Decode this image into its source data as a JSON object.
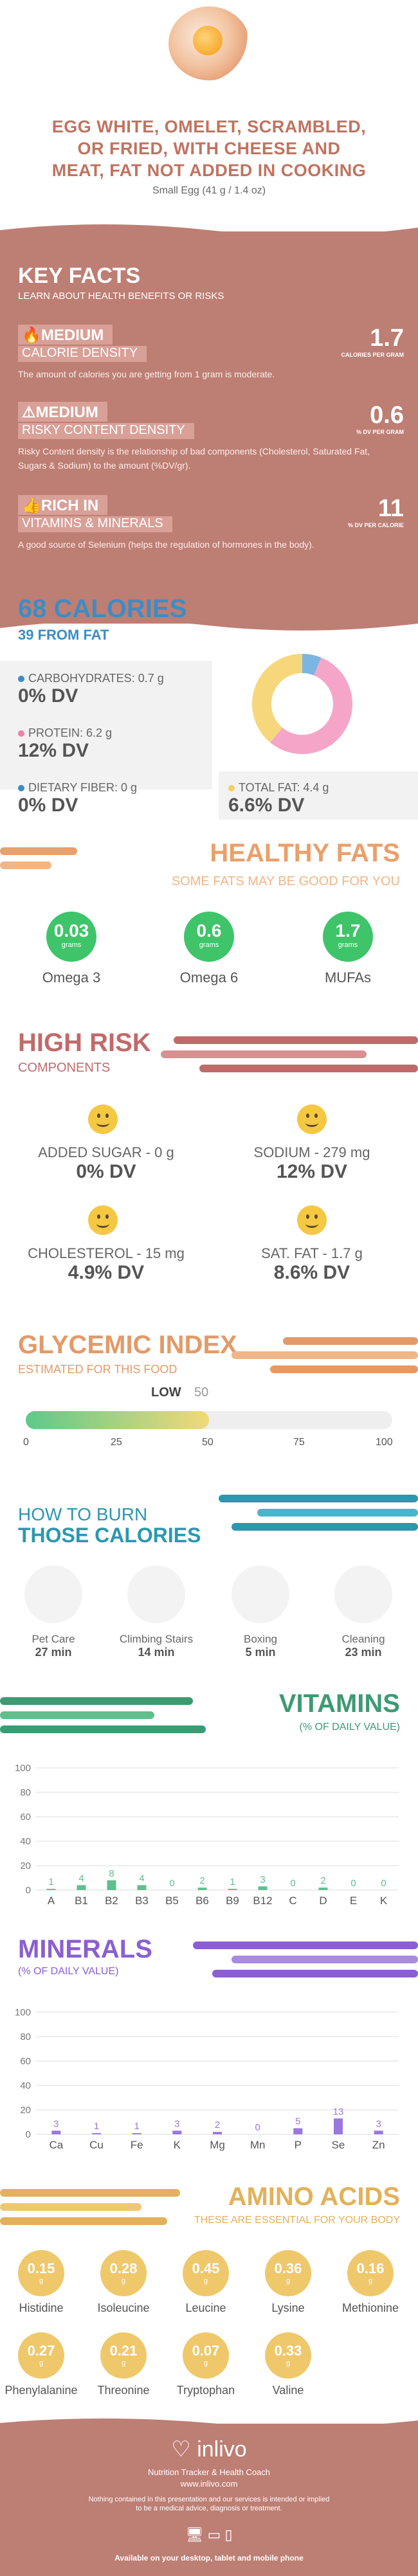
{
  "header": {
    "title_lines": [
      "EGG WHITE, OMELET, SCRAMBLED,",
      "OR FRIED, WITH CHEESE AND",
      "MEAT, FAT NOT ADDED IN COOKING"
    ],
    "serving": "Small Egg (41 g / 1.4 oz)"
  },
  "key_facts": {
    "title": "KEY FACTS",
    "subtitle": "LEARN ABOUT HEALTH BENEFITS OR RISKS",
    "items": [
      {
        "tag": "MEDIUM",
        "label": "CALORIE DENSITY",
        "value": "1.7",
        "unit": "CALORIES PER GRAM",
        "desc": "The amount of calories you are getting from 1 gram is moderate.",
        "icon": "flame-icon"
      },
      {
        "tag": "MEDIUM",
        "label": "RISKY CONTENT DENSITY",
        "value": "0.6",
        "unit": "% DV PER GRAM",
        "desc": "Risky Content density is the relationship of bad components (Cholesterol, Saturated Fat, Sugars & Sodium) to the amount (%DV/gr).",
        "icon": "warning-icon"
      },
      {
        "tag": "RICH  IN",
        "label": "VITAMINS & MINERALS",
        "value": "11",
        "unit": "% DV PER CALORIE",
        "desc": "A good source of Selenium (helps the regulation of hormones in the body).",
        "icon": "thumbs-up-icon"
      }
    ]
  },
  "calories": {
    "title": "68 CALORIES",
    "from_fat": "39 FROM FAT",
    "macros": [
      {
        "label": "CARBOHYDRATES: 0.7 g",
        "dv": "0% DV",
        "color": "#3d8cc4"
      },
      {
        "label": "PROTEIN: 6.2 g",
        "dv": "12% DV",
        "color": "#f27ea9"
      },
      {
        "label": "DIETARY FIBER: 0 g",
        "dv": "0% DV",
        "color": "#3d8cc4"
      },
      {
        "label": "TOTAL FAT: 4.4 g",
        "dv": "6.6% DV",
        "color": "#f5cf63"
      }
    ]
  },
  "chart_data": [
    {
      "type": "pie",
      "categories": [
        "Carbohydrates",
        "Protein",
        "Total Fat"
      ],
      "values": [
        0.7,
        6.2,
        4.4
      ],
      "colors": [
        "#7bb6e2",
        "#f5a6c8",
        "#f7d77b"
      ],
      "donut": true
    },
    {
      "type": "bar",
      "title": "VITAMINS",
      "subtitle": "(% OF DAILY VALUE)",
      "categories": [
        "A",
        "B1",
        "B2",
        "B3",
        "B5",
        "B6",
        "B9",
        "B12",
        "C",
        "D",
        "E",
        "K"
      ],
      "values": [
        1,
        4,
        8,
        4,
        0,
        2,
        1,
        3,
        0,
        2,
        0,
        0
      ],
      "ylim": [
        0,
        100
      ],
      "yticks": [
        "0",
        "20",
        "40",
        "60",
        "80",
        "100"
      ],
      "color": "#5fbf8d"
    },
    {
      "type": "bar",
      "title": "MINERALS",
      "subtitle": "(% OF DAILY VALUE)",
      "categories": [
        "Ca",
        "Cu",
        "Fe",
        "K",
        "Mg",
        "Mn",
        "P",
        "Se",
        "Zn"
      ],
      "values": [
        3,
        1,
        1,
        3,
        2,
        0,
        5,
        13,
        3
      ],
      "ylim": [
        0,
        100
      ],
      "yticks": [
        "0",
        "20",
        "40",
        "60",
        "80",
        "100"
      ],
      "color": "#9a78db"
    }
  ],
  "healthy_fats": {
    "title": "HEALTHY FATS",
    "subtitle": "SOME FATS MAY BE GOOD FOR YOU",
    "unit": "grams",
    "items": [
      {
        "value": "0.03",
        "label": "Omega 3"
      },
      {
        "value": "0.6",
        "label": "Omega 6"
      },
      {
        "value": "1.7",
        "label": "MUFAs"
      }
    ]
  },
  "high_risk": {
    "title": "HIGH RISK",
    "subtitle": "COMPONENTS",
    "items": [
      {
        "label": "ADDED SUGAR - 0 g",
        "dv": "0% DV"
      },
      {
        "label": "SODIUM - 279 mg",
        "dv": "12% DV"
      },
      {
        "label": "CHOLESTEROL - 15 mg",
        "dv": "4.9% DV"
      },
      {
        "label": "SAT. FAT - 1.7 g",
        "dv": "8.6% DV"
      }
    ]
  },
  "glycemic": {
    "title": "GLYCEMIC INDEX",
    "subtitle": "ESTIMATED FOR THIS FOOD",
    "level": "LOW",
    "value": "50",
    "fill_fraction": 0.5,
    "ticks": [
      "0",
      "25",
      "50",
      "75",
      "100"
    ]
  },
  "burn": {
    "title1": "HOW TO BURN",
    "title2": "THOSE CALORIES",
    "items": [
      {
        "name": "Pet Care",
        "minutes": "27 min"
      },
      {
        "name": "Climbing Stairs",
        "minutes": "14 min"
      },
      {
        "name": "Boxing",
        "minutes": "5 min"
      },
      {
        "name": "Cleaning",
        "minutes": "23 min"
      }
    ]
  },
  "amino": {
    "title": "AMINO ACIDS",
    "subtitle": "THESE ARE ESSENTIAL FOR YOUR BODY",
    "unit": "g",
    "items": [
      {
        "value": "0.15",
        "label": "Histidine"
      },
      {
        "value": "0.28",
        "label": "Isoleucine"
      },
      {
        "value": "0.45",
        "label": "Leucine"
      },
      {
        "value": "0.36",
        "label": "Lysine"
      },
      {
        "value": "0.16",
        "label": "Methionine"
      },
      {
        "value": "0.27",
        "label": "Phenylalanine"
      },
      {
        "value": "0.21",
        "label": "Threonine"
      },
      {
        "value": "0.07",
        "label": "Tryptophan"
      },
      {
        "value": "0.33",
        "label": "Valine"
      }
    ]
  },
  "footer": {
    "brand": "inlivo",
    "tagline": "Nutrition Tracker & Health Coach",
    "url": "www.inlivo.com",
    "disclaimer1": "Nothing contained in this presentation and our services is intended or implied",
    "disclaimer2": "to be a medical advice, diagnosis or treatment.",
    "available": "Available on your desktop, tablet and mobile phone"
  }
}
